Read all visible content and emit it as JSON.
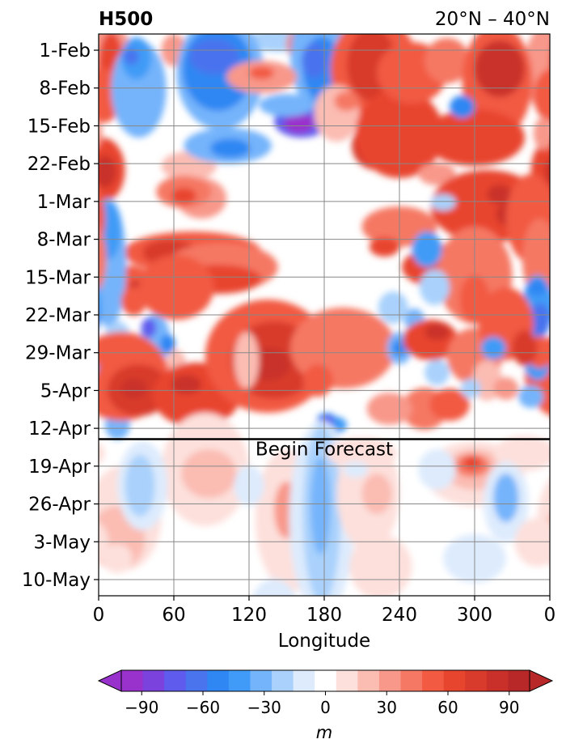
{
  "chart_data": {
    "type": "heatmap",
    "title_left": "H500",
    "title_right": "20°N – 40°N",
    "xlabel": "Longitude",
    "x_ticks": [
      "0",
      "60",
      "120",
      "180",
      "240",
      "300",
      "0"
    ],
    "x_tick_values": [
      0,
      60,
      120,
      180,
      240,
      300,
      360
    ],
    "xlim": [
      0,
      360
    ],
    "y_ticks": [
      "1-Feb",
      "8-Feb",
      "15-Feb",
      "22-Feb",
      "1-Mar",
      "8-Mar",
      "15-Mar",
      "22-Mar",
      "29-Mar",
      "5-Apr",
      "12-Apr",
      "19-Apr",
      "26-Apr",
      "3-May",
      "10-May"
    ],
    "ylim": [
      "29-Jan",
      "13-May"
    ],
    "grid": true,
    "forecast_line_date": "14-Apr",
    "forecast_label": "Begin Forecast",
    "colorbar": {
      "label": "m",
      "ticks": [
        "−90",
        "−60",
        "−30",
        "0",
        "30",
        "60",
        "90"
      ],
      "tick_values": [
        -90,
        -60,
        -30,
        0,
        30,
        60,
        90
      ],
      "levels": [
        -100,
        -90,
        -80,
        -70,
        -60,
        -50,
        -40,
        -30,
        -20,
        -10,
        10,
        20,
        30,
        40,
        50,
        60,
        70,
        80,
        90,
        100
      ],
      "colors": [
        "#9932cc",
        "#7b42de",
        "#5f5ced",
        "#4a73ee",
        "#2f87f3",
        "#3f9bf7",
        "#74b4fb",
        "#a9d1fc",
        "#ddebfd",
        "#ffffff",
        "#fde0dc",
        "#fbbcb2",
        "#f8988a",
        "#f57864",
        "#f25a42",
        "#e8452e",
        "#d83a2b",
        "#c9302a",
        "#b82829"
      ],
      "extend": "both"
    }
  }
}
